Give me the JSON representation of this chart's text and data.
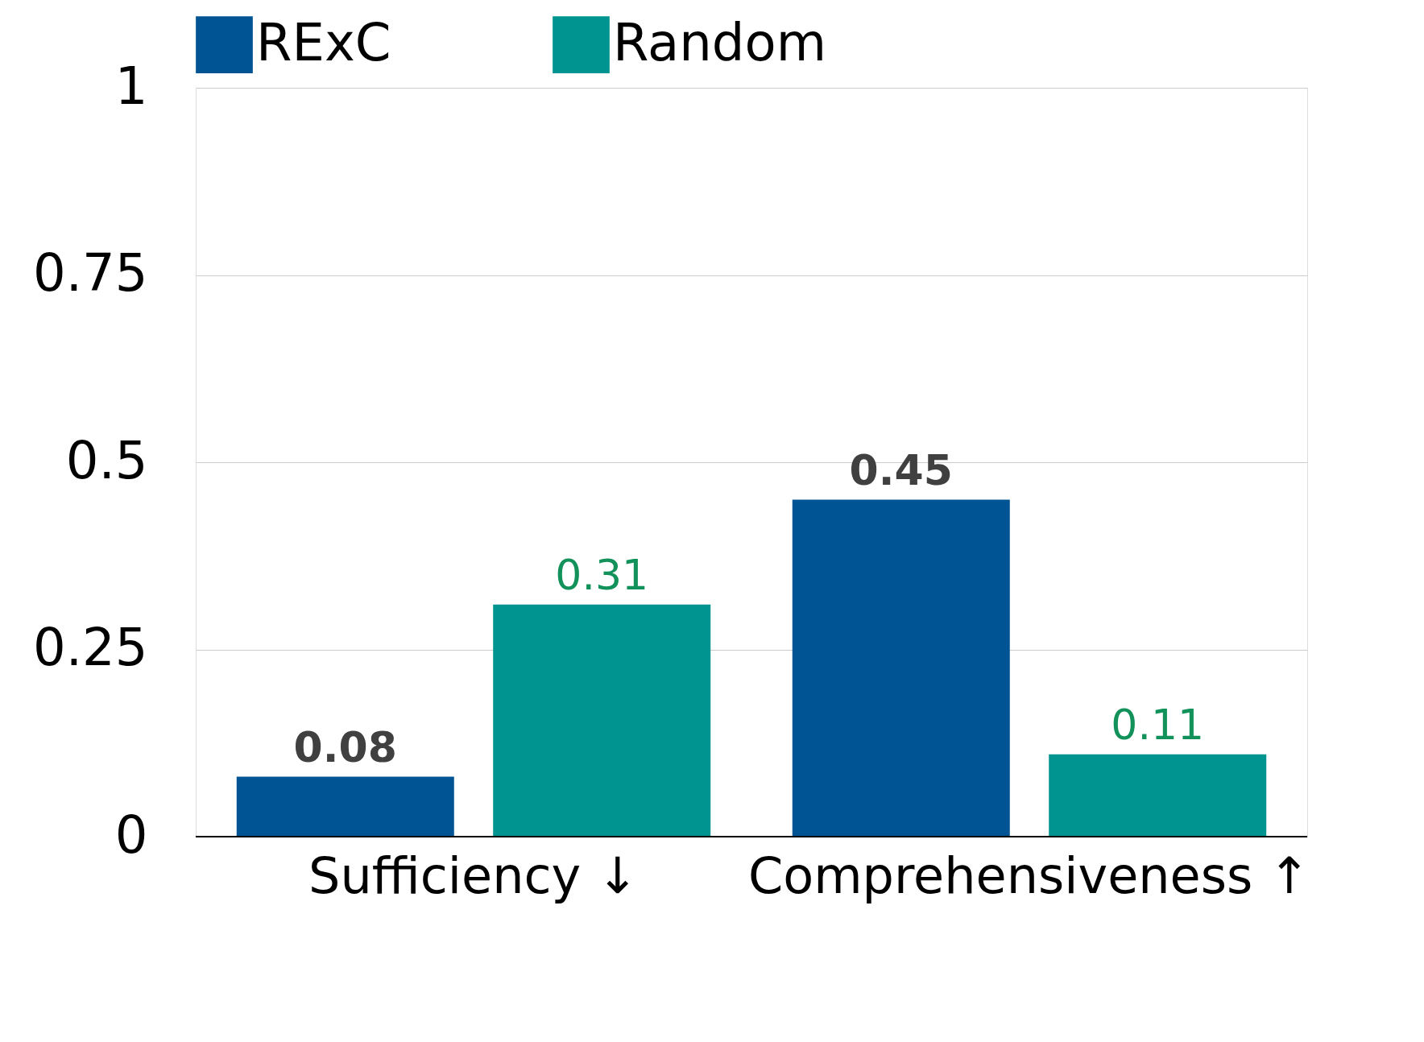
{
  "chart_data": {
    "type": "bar",
    "categories": [
      "Sufficiency ↓",
      "Comprehensiveness ↑"
    ],
    "series": [
      {
        "name": "RExC",
        "color": "#005493",
        "values": [
          0.08,
          0.45
        ]
      },
      {
        "name": "Random",
        "color": "#009490",
        "values": [
          0.31,
          0.11
        ]
      }
    ],
    "ylim": [
      0,
      1
    ],
    "yticks": [
      0,
      0.25,
      0.5,
      0.75,
      1
    ],
    "grid": "y",
    "legend": "top",
    "data_labels": true
  }
}
